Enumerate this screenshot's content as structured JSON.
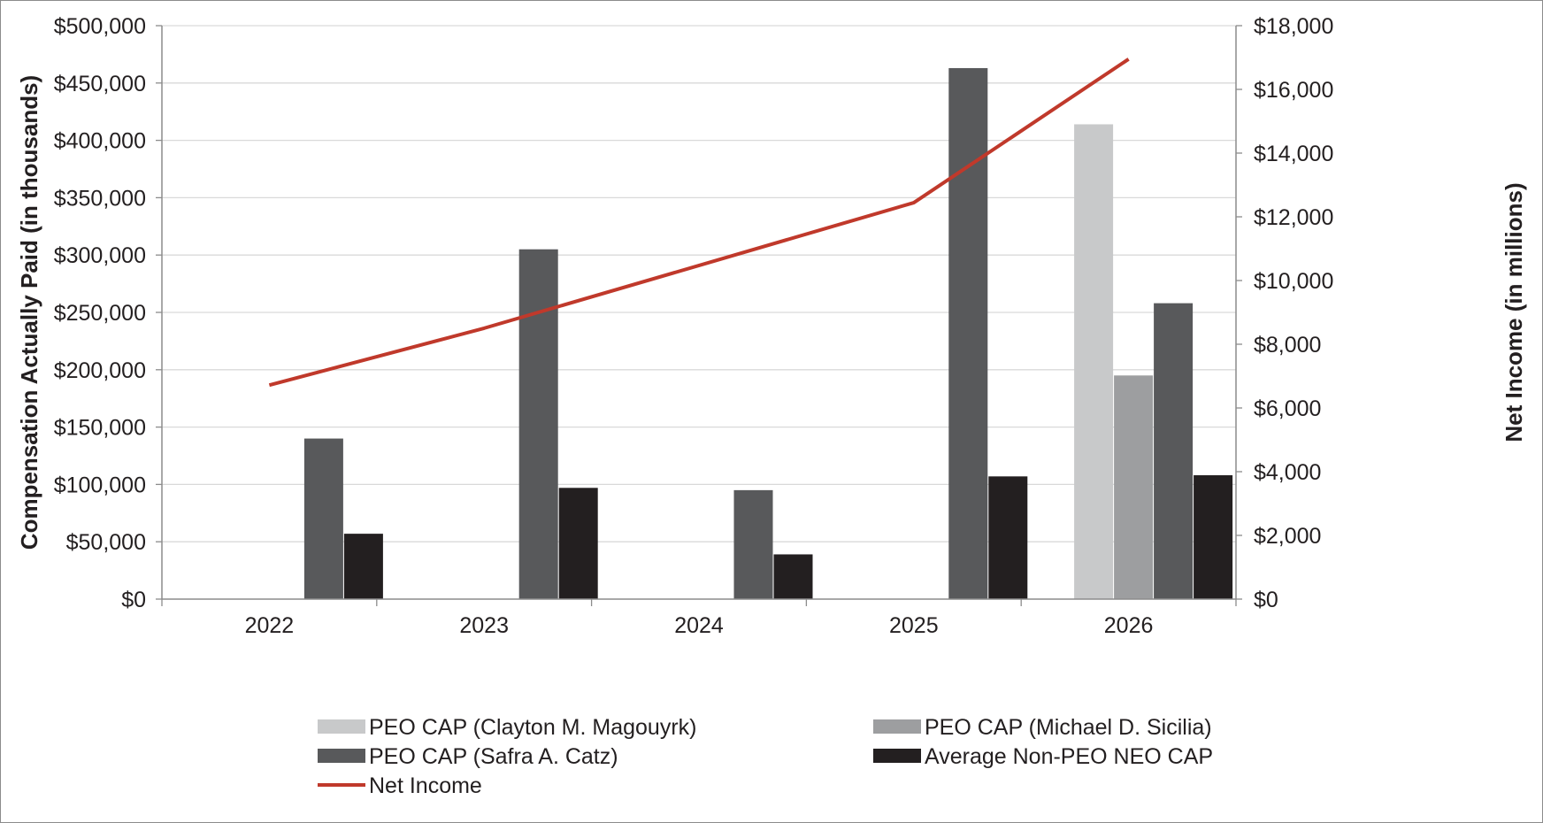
{
  "chart_data": {
    "type": "bar",
    "categories": [
      "2022",
      "2023",
      "2024",
      "2025",
      "2026"
    ],
    "series": [
      {
        "name": "PEO CAP (Clayton M. Magouyrk)",
        "axis": "left",
        "color": "#c8c9ca",
        "values": [
          null,
          null,
          null,
          null,
          414000
        ]
      },
      {
        "name": "PEO CAP (Michael D. Sicilia)",
        "axis": "left",
        "color": "#9d9ea0",
        "values": [
          null,
          null,
          null,
          null,
          195000
        ]
      },
      {
        "name": "PEO CAP (Safra A. Catz)",
        "axis": "left",
        "color": "#58595b",
        "values": [
          140000,
          305000,
          95000,
          463000,
          258000
        ]
      },
      {
        "name": "Average Non-PEO NEO CAP",
        "axis": "left",
        "color": "#231f20",
        "values": [
          57000,
          97000,
          39000,
          107000,
          108000
        ]
      }
    ],
    "line_series": {
      "name": "Net Income",
      "type": "line",
      "axis": "right",
      "color": "#c0392b",
      "values": [
        6717,
        8503,
        null,
        12443,
        16950
      ]
    },
    "ylabel": "Compensation Actually Paid (in thousands)",
    "y2label": "Net Income (in millions)",
    "ylim": [
      0,
      500000
    ],
    "y2lim": [
      0,
      18000
    ],
    "yticks": [
      "$0",
      "$50,000",
      "$100,000",
      "$150,000",
      "$200,000",
      "$250,000",
      "$300,000",
      "$350,000",
      "$400,000",
      "$450,000",
      "$500,000"
    ],
    "y2ticks": [
      "$0",
      "$2,000",
      "$4,000",
      "$6,000",
      "$8,000",
      "$10,000",
      "$12,000",
      "$14,000",
      "$16,000",
      "$18,000"
    ],
    "grid": true,
    "legend_position": "bottom"
  }
}
